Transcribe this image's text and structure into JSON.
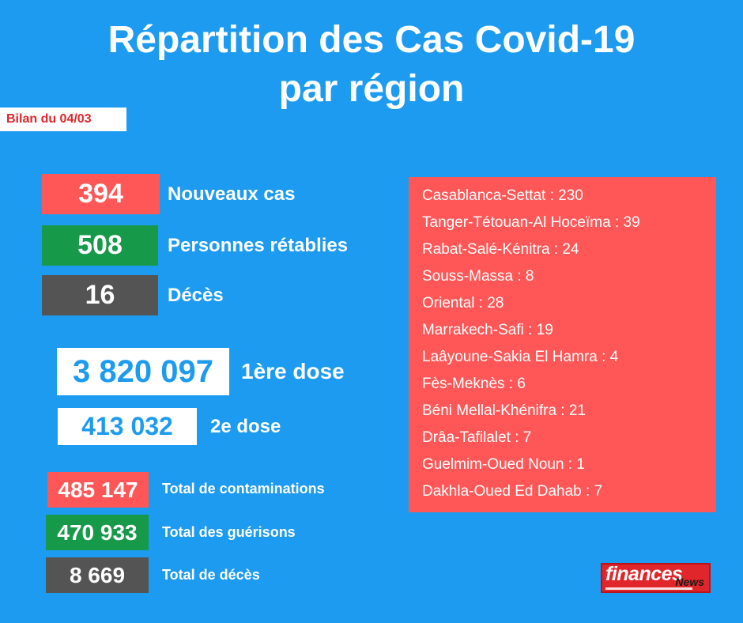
{
  "title": {
    "line1": "Répartition des Cas Covid-19",
    "line2": "par région"
  },
  "badge": "Bilan du 04/03",
  "daily": [
    {
      "value": "394",
      "label": "Nouveaux cas",
      "color": "#ff5757"
    },
    {
      "value": "508",
      "label": "Personnes rétablies",
      "color": "#17994a"
    },
    {
      "value": "16",
      "label": "Décès",
      "color": "#545454"
    }
  ],
  "vaccination": [
    {
      "value": "3 820 097",
      "label": "1ère dose"
    },
    {
      "value": "413 032",
      "label": "2e dose"
    }
  ],
  "totals": [
    {
      "value": "485 147",
      "label": "Total de contaminations",
      "color": "#ff5757"
    },
    {
      "value": "470 933",
      "label": "Total des guérisons",
      "color": "#17994a"
    },
    {
      "value": "8 669",
      "label": "Total de décès",
      "color": "#545454"
    }
  ],
  "regions": [
    "Casablanca-Settat : 230",
    "Tanger-Tétouan-Al Hoceïma : 39",
    "Rabat-Salé-Kénitra : 24",
    "Souss-Massa : 8",
    "Oriental : 28",
    "Marrakech-Safi : 19",
    "Laâyoune-Sakia El Hamra : 4",
    "Fès-Meknès : 6",
    "Béni Mellal-Khénifra : 21",
    "Drâa-Tafilalet : 7",
    "Guelmim-Oued Noun : 1",
    "Dakhla-Oued Ed Dahab : 7"
  ],
  "logo": {
    "main": "finances",
    "news": "News"
  },
  "colors": {
    "background": "#1d9bf0",
    "red": "#ff5757",
    "green": "#17994a",
    "gray": "#545454",
    "badge_text": "#e0262a"
  }
}
